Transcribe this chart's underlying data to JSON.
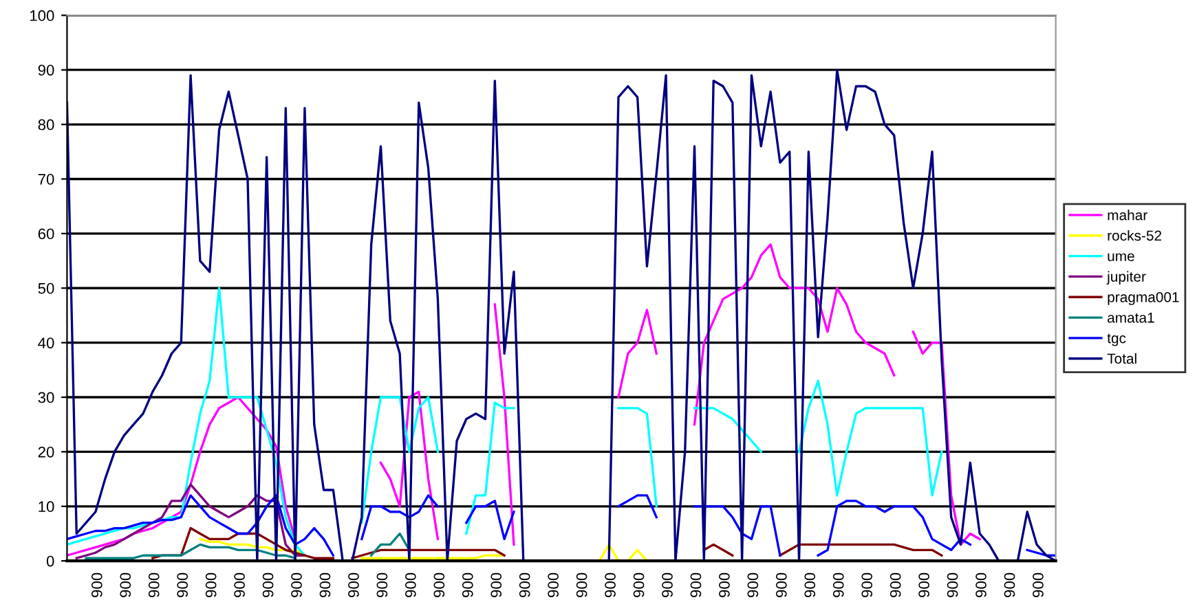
{
  "chart_data": {
    "type": "line",
    "ylim": [
      0,
      100
    ],
    "yticks": [
      0,
      10,
      20,
      30,
      40,
      50,
      60,
      70,
      80,
      90,
      100
    ],
    "categories": [
      null,
      null,
      null,
      "006",
      null,
      null,
      "006",
      null,
      null,
      "006",
      null,
      null,
      "006",
      null,
      null,
      "006",
      null,
      null,
      "006",
      null,
      null,
      "006",
      null,
      null,
      "006",
      null,
      null,
      "006",
      null,
      null,
      "006",
      null,
      null,
      "006",
      null,
      null,
      "006",
      null,
      null,
      "006",
      null,
      null,
      "006",
      null,
      null,
      "006",
      null,
      null,
      "006",
      null,
      null,
      "006",
      null,
      null,
      "006",
      null,
      null,
      "006",
      null,
      null,
      "006",
      null,
      null,
      "006",
      null,
      null,
      "006",
      null,
      null,
      "006",
      null,
      null,
      "006",
      null,
      null,
      "006",
      null,
      null,
      "006",
      null,
      null,
      "006",
      null,
      null,
      "006",
      null,
      null,
      "006",
      null,
      null,
      "006",
      null,
      null,
      "006",
      null,
      null,
      "006",
      null,
      null,
      "006",
      null,
      null,
      "006",
      null,
      null
    ],
    "grid": "y",
    "legend": "right",
    "marker": "none",
    "line_style": "solid",
    "series": [
      {
        "name": "mahar",
        "color": "#ff00ff",
        "values": [
          1,
          1.5,
          2,
          2.5,
          3,
          3.5,
          4,
          5,
          5.5,
          6,
          7,
          8,
          9,
          14,
          20,
          25,
          28,
          29,
          30,
          28,
          26,
          24,
          21,
          10,
          4,
          null,
          null,
          null,
          null,
          null,
          null,
          null,
          null,
          18,
          15,
          10,
          30,
          31,
          15,
          4,
          null,
          null,
          null,
          null,
          null,
          47,
          30,
          3,
          null,
          null,
          null,
          null,
          null,
          null,
          null,
          null,
          null,
          null,
          30,
          38,
          40,
          46,
          38,
          null,
          null,
          null,
          25,
          40,
          44,
          48,
          49,
          50,
          52,
          56,
          58,
          52,
          50,
          50,
          50,
          48,
          42,
          50,
          47,
          42,
          40,
          39,
          38,
          34,
          null,
          42,
          38,
          40,
          40,
          12,
          3,
          5,
          4,
          null,
          null,
          null,
          null,
          null,
          null,
          null,
          null
        ]
      },
      {
        "name": "rocks-52",
        "color": "#ffff00",
        "values": [
          null,
          null,
          null,
          null,
          null,
          null,
          null,
          null,
          null,
          null,
          null,
          null,
          null,
          null,
          4,
          3.5,
          3.5,
          3,
          3,
          3,
          2.5,
          2.5,
          2,
          2,
          2,
          1,
          null,
          null,
          null,
          null,
          null,
          0.5,
          0.5,
          0.5,
          0.5,
          0.5,
          0.5,
          0.5,
          0.5,
          0.5,
          0.5,
          0.5,
          0.5,
          0.5,
          1,
          1,
          1,
          null,
          null,
          null,
          null,
          null,
          null,
          null,
          null,
          null,
          0,
          3,
          0,
          0,
          2,
          0,
          null,
          null,
          null,
          null,
          null,
          null,
          null,
          null,
          null,
          null,
          null,
          null,
          null,
          null,
          null,
          null,
          null,
          null,
          null,
          null,
          null,
          null,
          null,
          null,
          null,
          null,
          null,
          null,
          null,
          null,
          null,
          null,
          null,
          null,
          null,
          null,
          null,
          null,
          null,
          null,
          null,
          null,
          null
        ]
      },
      {
        "name": "ume",
        "color": "#00ffff",
        "values": [
          3,
          3.5,
          4,
          4.5,
          5,
          5.5,
          6,
          6,
          6.5,
          7,
          7.5,
          8,
          8,
          18,
          27,
          33,
          50,
          30,
          30,
          30,
          30,
          24,
          18,
          8,
          3,
          1,
          null,
          null,
          null,
          null,
          null,
          7,
          20,
          30,
          30,
          30,
          20,
          28,
          30,
          20,
          null,
          null,
          5,
          12,
          12,
          29,
          28,
          28,
          null,
          null,
          null,
          null,
          null,
          null,
          null,
          null,
          null,
          null,
          28,
          28,
          28,
          27,
          10,
          null,
          null,
          null,
          28,
          28,
          28,
          27,
          26,
          24,
          22,
          20,
          null,
          null,
          null,
          20,
          28,
          33,
          25,
          12,
          20,
          27,
          28,
          28,
          28,
          28,
          28,
          28,
          28,
          12,
          20,
          null,
          null,
          null,
          null,
          null,
          null,
          null,
          null,
          null,
          null,
          null,
          null
        ]
      },
      {
        "name": "jupiter",
        "color": "#800080",
        "values": [
          null,
          0.5,
          1,
          1.5,
          2.5,
          3,
          4,
          5,
          6,
          7,
          8,
          11,
          11,
          14,
          12,
          10,
          9,
          8,
          9,
          10,
          12,
          11,
          11,
          3,
          1,
          1,
          null,
          null,
          null,
          null,
          null,
          null,
          null,
          null,
          null,
          null,
          null,
          null,
          null,
          null,
          null,
          null,
          null,
          null,
          null,
          null,
          null,
          null,
          null,
          null,
          null,
          null,
          null,
          null,
          null,
          null,
          null,
          null,
          null,
          null,
          null,
          null,
          null,
          null,
          null,
          null,
          null,
          null,
          null,
          null,
          null,
          null,
          null,
          null,
          null,
          null,
          null,
          null,
          null,
          null,
          null,
          null,
          null,
          null,
          null,
          null,
          null,
          null,
          null,
          null,
          null,
          null,
          null,
          null,
          null,
          null,
          null,
          null,
          null,
          null,
          null,
          null,
          null,
          null,
          null
        ]
      },
      {
        "name": "pragma001",
        "color": "#800000",
        "values": [
          null,
          null,
          null,
          null,
          null,
          null,
          null,
          null,
          null,
          0.5,
          1,
          1,
          1,
          6,
          5,
          4,
          4,
          4,
          5,
          5,
          5,
          4,
          3,
          2,
          1.5,
          1,
          0.5,
          0.5,
          0.5,
          null,
          0.5,
          1,
          1.5,
          2,
          2,
          2,
          2,
          2,
          2,
          2,
          2,
          2,
          2,
          2,
          2,
          2,
          1,
          null,
          null,
          null,
          null,
          null,
          null,
          null,
          null,
          null,
          null,
          null,
          null,
          null,
          null,
          null,
          null,
          null,
          null,
          null,
          null,
          2,
          3,
          2,
          1,
          null,
          null,
          null,
          null,
          1,
          2,
          3,
          3,
          3,
          3,
          3,
          3,
          3,
          3,
          3,
          3,
          3,
          2.5,
          2,
          2,
          2,
          1,
          null,
          null,
          null,
          null,
          null,
          null,
          null,
          null,
          null,
          null,
          null,
          null
        ]
      },
      {
        "name": "amata1",
        "color": "#008080",
        "values": [
          null,
          null,
          0.5,
          0.5,
          0.5,
          0.5,
          0.5,
          0.5,
          1,
          1,
          1,
          1,
          1,
          2,
          3,
          2.5,
          2.5,
          2.5,
          2,
          2,
          2,
          1.5,
          1,
          1,
          0.5,
          null,
          null,
          null,
          null,
          null,
          null,
          null,
          1,
          3,
          3,
          5,
          2,
          null,
          null,
          null,
          null,
          null,
          null,
          null,
          null,
          null,
          null,
          null,
          null,
          null,
          null,
          null,
          null,
          null,
          null,
          null,
          null,
          null,
          null,
          null,
          null,
          null,
          null,
          null,
          null,
          null,
          null,
          null,
          null,
          null,
          null,
          null,
          null,
          null,
          null,
          null,
          null,
          null,
          null,
          null,
          null,
          null,
          null,
          null,
          null,
          null,
          null,
          null,
          null,
          null,
          null,
          null,
          null,
          null,
          null,
          null,
          null,
          null,
          null,
          null,
          null,
          null,
          null,
          null,
          null
        ]
      },
      {
        "name": "tgc",
        "color": "#0000ff",
        "values": [
          4,
          4.5,
          5,
          5.5,
          5.5,
          6,
          6,
          6.5,
          7,
          7,
          7.5,
          7.5,
          8,
          12,
          10,
          8,
          7,
          6,
          5,
          5,
          7,
          10,
          12,
          6,
          3,
          4,
          6,
          4,
          1,
          null,
          null,
          4,
          10,
          10,
          9,
          9,
          8,
          9,
          12,
          10,
          null,
          null,
          7,
          10,
          10,
          11,
          4,
          9,
          null,
          null,
          null,
          null,
          null,
          null,
          null,
          null,
          null,
          null,
          10,
          11,
          12,
          12,
          8,
          null,
          null,
          null,
          10,
          10,
          10,
          10,
          8,
          5,
          4,
          10,
          10,
          1,
          null,
          null,
          null,
          1,
          2,
          10,
          11,
          11,
          10,
          10,
          9,
          10,
          10,
          10,
          8,
          4,
          3,
          2,
          4,
          3,
          null,
          null,
          null,
          null,
          null,
          2,
          1.5,
          1,
          1
        ]
      },
      {
        "name": "Total",
        "color": "#000080",
        "values": [
          84,
          5,
          7,
          9,
          15,
          20,
          23,
          25,
          27,
          31,
          34,
          38,
          40,
          89,
          55,
          53,
          79,
          86,
          78,
          70,
          0,
          74,
          0,
          83,
          0,
          83,
          25,
          13,
          13,
          0,
          0,
          8,
          58,
          76,
          44,
          38,
          0,
          84,
          72,
          48,
          0,
          22,
          26,
          27,
          26,
          88,
          38,
          53,
          0,
          null,
          null,
          null,
          null,
          null,
          null,
          null,
          0,
          0,
          85,
          87,
          85,
          54,
          71,
          89,
          0,
          20,
          76,
          0,
          88,
          87,
          84,
          0,
          89,
          76,
          86,
          73,
          75,
          0,
          75,
          41,
          63,
          90,
          79,
          87,
          87,
          86,
          80,
          78,
          62,
          50,
          60,
          75,
          37,
          8,
          3,
          18,
          5,
          3,
          0,
          null,
          0,
          9,
          3,
          1,
          0
        ]
      }
    ]
  }
}
